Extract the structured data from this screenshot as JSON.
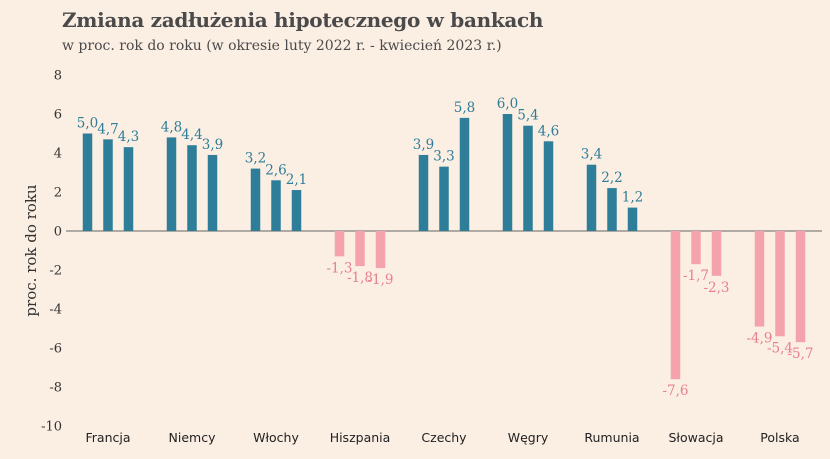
{
  "chart_data": {
    "type": "bar",
    "title": "Zmiana zadłużenia hipotecznego w bankach",
    "subtitle": "w proc. rok do roku (w okresie luty 2022 r. - kwiecień 2023 r.)",
    "ylabel": "proc. rok do roku",
    "xlabel": "",
    "ylim": [
      -10,
      8
    ],
    "yticks": [
      8,
      6,
      4,
      2,
      0,
      -2,
      -4,
      -6,
      -8,
      -10
    ],
    "grid": false,
    "legend": "none",
    "categories": [
      "Francja",
      "Niemcy",
      "Włochy",
      "Hiszpania",
      "Czechy",
      "Węgry",
      "Rumunia",
      "Słowacja",
      "Polska"
    ],
    "groups": [
      {
        "category": "Francja",
        "values": [
          5.0,
          4.7,
          4.3
        ],
        "labels": [
          "5,0",
          "4,7",
          "4,3"
        ]
      },
      {
        "category": "Niemcy",
        "values": [
          4.8,
          4.4,
          3.9
        ],
        "labels": [
          "4,8",
          "4,4",
          "3,9"
        ]
      },
      {
        "category": "Włochy",
        "values": [
          3.2,
          2.6,
          2.1
        ],
        "labels": [
          "3,2",
          "2,6",
          "2,1"
        ]
      },
      {
        "category": "Hiszpania",
        "values": [
          -1.3,
          -1.8,
          -1.9
        ],
        "labels": [
          "-1,3",
          "-1,8",
          "-1,9"
        ]
      },
      {
        "category": "Czechy",
        "values": [
          3.9,
          3.3,
          5.8
        ],
        "labels": [
          "3,9",
          "3,3",
          "5,8"
        ]
      },
      {
        "category": "Węgry",
        "values": [
          6.0,
          5.4,
          4.6
        ],
        "labels": [
          "6,0",
          "5,4",
          "4,6"
        ]
      },
      {
        "category": "Rumunia",
        "values": [
          3.4,
          2.2,
          1.2
        ],
        "labels": [
          "3,4",
          "2,2",
          "1,2"
        ]
      },
      {
        "category": "Słowacja",
        "values": [
          -7.6,
          -1.7,
          -2.3
        ],
        "labels": [
          "-7,6",
          "-1,7",
          "-2,3"
        ]
      },
      {
        "category": "Polska",
        "values": [
          -4.9,
          -5.4,
          -5.7
        ],
        "labels": [
          "-4,9",
          "-5,4",
          "-5,7"
        ]
      }
    ],
    "colors": {
      "positive": "#2e7d99",
      "negative": "#f4a3ad",
      "negative_label": "#e8808e",
      "positive_label": "#2e7d99",
      "axis": "#666666",
      "background": "#fbeee3",
      "title": "#4a4a4a"
    }
  }
}
